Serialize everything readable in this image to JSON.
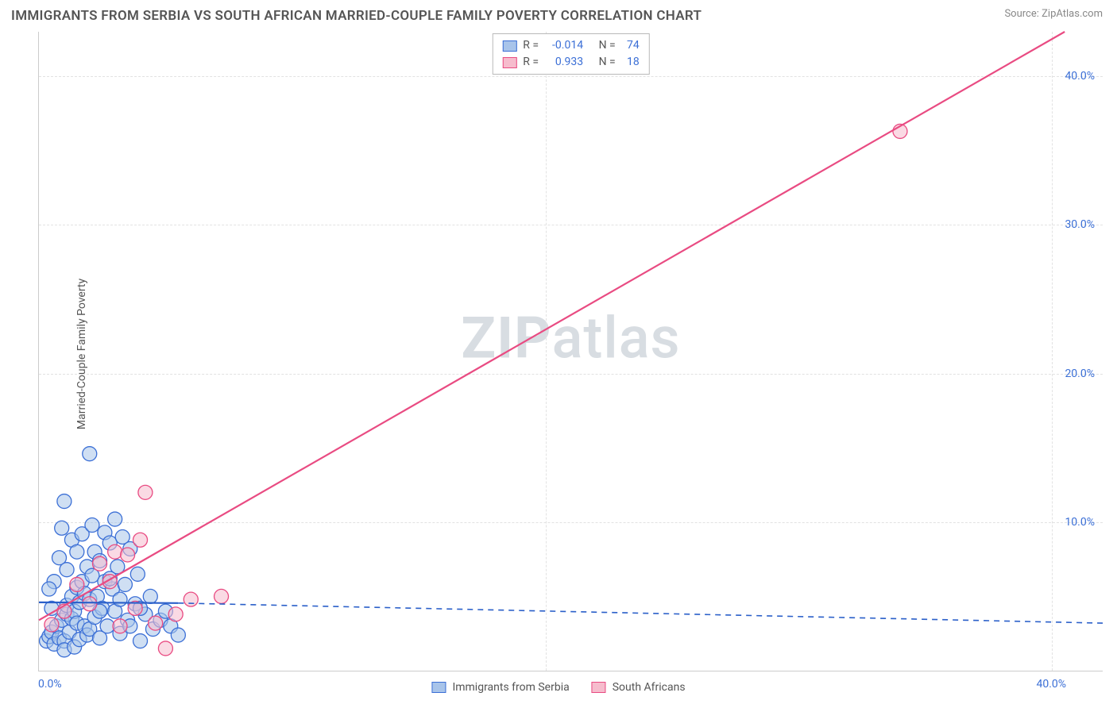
{
  "header": {
    "title": "IMMIGRANTS FROM SERBIA VS SOUTH AFRICAN MARRIED-COUPLE FAMILY POVERTY CORRELATION CHART",
    "source_label": "Source:",
    "source_name": "ZipAtlas.com"
  },
  "watermark": {
    "left": "ZIP",
    "right": "atlas"
  },
  "y_axis": {
    "label": "Married-Couple Family Poverty",
    "ticks": [
      {
        "value": 10,
        "label": "10.0%"
      },
      {
        "value": 20,
        "label": "20.0%"
      },
      {
        "value": 30,
        "label": "30.0%"
      },
      {
        "value": 40,
        "label": "40.0%"
      }
    ],
    "min": 0,
    "max": 43
  },
  "x_axis": {
    "origin_label": "0.0%",
    "ticks": [
      {
        "value": 20,
        "label": ""
      },
      {
        "value": 40,
        "label": "40.0%"
      }
    ],
    "min": 0,
    "max": 42
  },
  "series": [
    {
      "key": "serbia",
      "legend_label": "Immigrants from Serbia",
      "R_label": "R =",
      "R_value": "-0.014",
      "N_label": "N =",
      "N_value": "74",
      "fill": "#a8c4ea",
      "stroke": "#3b6fd6",
      "marker_radius": 9,
      "fill_opacity": 0.55,
      "trend": {
        "solid_from": [
          0,
          4.6
        ],
        "solid_to": [
          5.5,
          4.55
        ],
        "dashed_to": [
          42,
          3.2
        ],
        "color": "#2a5fc9",
        "width": 2.2,
        "dash": "7,6"
      },
      "points": [
        [
          0.3,
          2.0
        ],
        [
          0.4,
          2.3
        ],
        [
          0.5,
          2.6
        ],
        [
          0.6,
          1.8
        ],
        [
          0.7,
          3.0
        ],
        [
          0.8,
          2.2
        ],
        [
          0.9,
          3.4
        ],
        [
          1.0,
          2.0
        ],
        [
          1.0,
          1.4
        ],
        [
          1.1,
          3.8
        ],
        [
          1.1,
          4.4
        ],
        [
          1.2,
          2.6
        ],
        [
          1.3,
          5.0
        ],
        [
          1.3,
          3.5
        ],
        [
          1.4,
          4.0
        ],
        [
          1.4,
          1.6
        ],
        [
          1.5,
          5.6
        ],
        [
          1.5,
          3.2
        ],
        [
          1.6,
          4.6
        ],
        [
          1.6,
          2.1
        ],
        [
          1.7,
          6.0
        ],
        [
          1.8,
          3.0
        ],
        [
          1.8,
          5.2
        ],
        [
          1.9,
          2.4
        ],
        [
          1.9,
          7.0
        ],
        [
          2.0,
          4.8
        ],
        [
          2.0,
          2.8
        ],
        [
          2.1,
          6.4
        ],
        [
          2.2,
          3.6
        ],
        [
          2.2,
          8.0
        ],
        [
          2.3,
          5.0
        ],
        [
          2.4,
          2.2
        ],
        [
          2.4,
          7.4
        ],
        [
          2.5,
          4.2
        ],
        [
          2.6,
          9.3
        ],
        [
          2.6,
          6.0
        ],
        [
          2.7,
          3.0
        ],
        [
          2.8,
          8.6
        ],
        [
          2.9,
          5.5
        ],
        [
          3.0,
          10.2
        ],
        [
          3.0,
          4.0
        ],
        [
          3.1,
          7.0
        ],
        [
          3.2,
          2.5
        ],
        [
          3.3,
          9.0
        ],
        [
          3.4,
          5.8
        ],
        [
          3.5,
          3.4
        ],
        [
          3.6,
          8.2
        ],
        [
          3.8,
          4.5
        ],
        [
          3.9,
          6.5
        ],
        [
          4.0,
          2.0
        ],
        [
          4.2,
          3.8
        ],
        [
          4.4,
          5.0
        ],
        [
          1.0,
          11.4
        ],
        [
          2.0,
          14.6
        ],
        [
          0.9,
          9.6
        ],
        [
          1.3,
          8.8
        ],
        [
          0.6,
          6.0
        ],
        [
          0.5,
          4.2
        ],
        [
          0.4,
          5.5
        ],
        [
          0.8,
          7.6
        ],
        [
          1.1,
          6.8
        ],
        [
          1.5,
          8.0
        ],
        [
          1.7,
          9.2
        ],
        [
          2.1,
          9.8
        ],
        [
          2.4,
          4.0
        ],
        [
          2.8,
          6.2
        ],
        [
          3.2,
          4.8
        ],
        [
          3.6,
          3.0
        ],
        [
          4.0,
          4.2
        ],
        [
          4.5,
          2.8
        ],
        [
          4.8,
          3.4
        ],
        [
          5.0,
          4.0
        ],
        [
          5.2,
          3.0
        ],
        [
          5.5,
          2.4
        ]
      ]
    },
    {
      "key": "south_africa",
      "legend_label": "South Africans",
      "R_label": "R =",
      "R_value": "0.933",
      "N_label": "N =",
      "N_value": "18",
      "fill": "#f6bccd",
      "stroke": "#e94b82",
      "marker_radius": 9,
      "fill_opacity": 0.55,
      "trend": {
        "solid_from": [
          0,
          3.4
        ],
        "solid_to": [
          40.5,
          43
        ],
        "dashed_to": null,
        "color": "#e94b82",
        "width": 2.2,
        "dash": null
      },
      "points": [
        [
          0.5,
          3.1
        ],
        [
          1.0,
          4.0
        ],
        [
          1.5,
          5.8
        ],
        [
          2.0,
          4.5
        ],
        [
          2.4,
          7.2
        ],
        [
          2.8,
          6.0
        ],
        [
          3.0,
          8.0
        ],
        [
          3.2,
          3.0
        ],
        [
          3.5,
          7.8
        ],
        [
          3.8,
          4.2
        ],
        [
          4.0,
          8.8
        ],
        [
          4.2,
          12.0
        ],
        [
          4.6,
          3.2
        ],
        [
          5.0,
          1.5
        ],
        [
          5.4,
          3.8
        ],
        [
          6.0,
          4.8
        ],
        [
          7.2,
          5.0
        ],
        [
          34.0,
          36.3
        ]
      ]
    }
  ],
  "colors": {
    "grid": "#e2e2e2",
    "axis": "#cccccc",
    "text": "#555555",
    "tick_text": "#3b6fd6",
    "background": "#ffffff"
  }
}
